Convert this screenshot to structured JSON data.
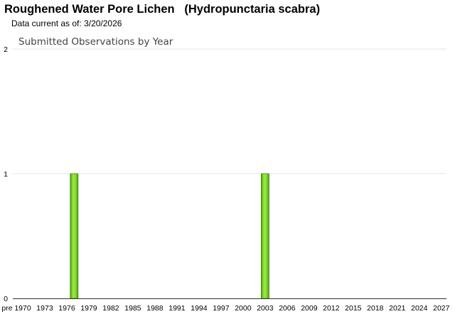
{
  "header": {
    "common_name": "Roughened Water Pore Lichen",
    "scientific_name": "(Hydropunctaria scabra)",
    "data_current_label": "Data current as of:",
    "data_current_date": "3/20/2026"
  },
  "chart_data": {
    "type": "bar",
    "title": "Submitted Observations by Year",
    "xlabel": "",
    "ylabel": "",
    "ylim": [
      0,
      2
    ],
    "y_ticks": [
      "0",
      "1",
      "2"
    ],
    "x_tick_labels": [
      "pre",
      "1970",
      "1973",
      "1976",
      "1979",
      "1982",
      "1985",
      "1988",
      "1991",
      "1994",
      "1997",
      "2000",
      "2003",
      "2006",
      "2009",
      "2012",
      "2015",
      "2018",
      "2021",
      "2024",
      "2027"
    ],
    "categories": [
      "1977",
      "2003"
    ],
    "values": [
      1,
      1
    ],
    "x_range": [
      "pre",
      "2027"
    ],
    "bar_color": "#7ed321",
    "grid": true,
    "legend": "none"
  }
}
